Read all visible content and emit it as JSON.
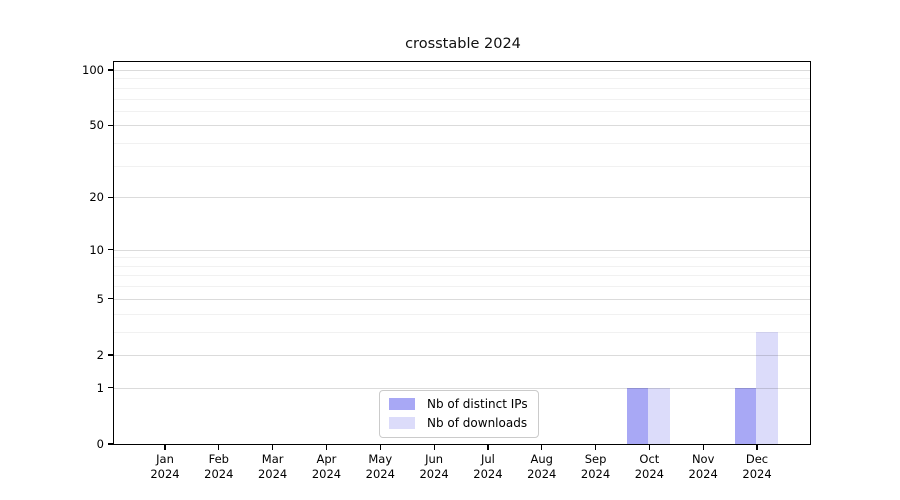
{
  "chart_data": {
    "type": "bar",
    "title": "crosstable 2024",
    "categories": [
      "Jan 2024",
      "Feb 2024",
      "Mar 2024",
      "Apr 2024",
      "May 2024",
      "Jun 2024",
      "Jul 2024",
      "Aug 2024",
      "Sep 2024",
      "Oct 2024",
      "Nov 2024",
      "Dec 2024"
    ],
    "series": [
      {
        "name": "Nb of distinct IPs",
        "color": "#a8a8f5",
        "values": [
          0,
          0,
          0,
          0,
          0,
          0,
          0,
          0,
          0,
          1,
          0,
          1
        ]
      },
      {
        "name": "Nb of downloads",
        "color": "#dcdcfa",
        "values": [
          0,
          0,
          0,
          0,
          0,
          0,
          0,
          0,
          0,
          1,
          0,
          3
        ]
      }
    ],
    "yscale": "log1p",
    "y_axis": {
      "major_ticks": [
        0,
        1,
        2,
        5,
        10,
        20,
        50,
        100
      ],
      "minor_ticks": [
        3,
        4,
        6,
        7,
        8,
        9,
        30,
        40,
        60,
        70,
        80,
        90
      ]
    },
    "xlabel": "",
    "ylabel": "",
    "grid": "horizontal",
    "legend_position": "inside-bottom-center"
  }
}
